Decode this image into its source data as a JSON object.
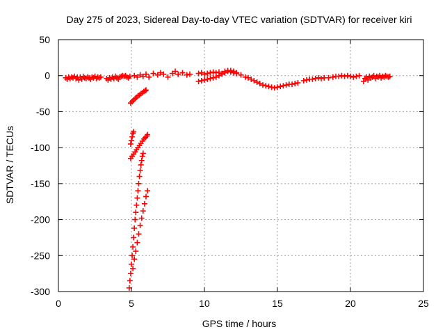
{
  "chart_data": {
    "type": "scatter",
    "title": "Day 275 of 2023, Sidereal Day-to-day VTEC variation (SDTVAR) for receiver kiri",
    "xlabel": "GPS time / hours",
    "ylabel": "SDTVAR / TECUs",
    "xlim": [
      0,
      25
    ],
    "ylim": [
      -300,
      50
    ],
    "xticks": [
      0,
      5,
      10,
      15,
      20,
      25
    ],
    "yticks": [
      -300,
      -250,
      -200,
      -150,
      -100,
      -50,
      0,
      50
    ],
    "grid": true,
    "marker": "plus",
    "color": "#ff0000",
    "series": [
      {
        "points": [
          [
            0.5,
            -3
          ],
          [
            0.6,
            -5
          ],
          [
            0.7,
            -2
          ],
          [
            0.8,
            -4
          ],
          [
            0.9,
            -2
          ],
          [
            1.0,
            -3
          ],
          [
            1.1,
            -1
          ],
          [
            1.2,
            -4
          ],
          [
            1.3,
            -2
          ],
          [
            1.4,
            -6
          ],
          [
            1.5,
            -2
          ],
          [
            1.6,
            -5
          ],
          [
            1.7,
            -1
          ],
          [
            1.8,
            -3
          ],
          [
            1.9,
            -4
          ],
          [
            2.0,
            -2
          ],
          [
            2.1,
            -3
          ],
          [
            2.2,
            -5
          ],
          [
            2.3,
            -2
          ],
          [
            2.4,
            -3
          ],
          [
            2.5,
            -1
          ],
          [
            2.6,
            -4
          ],
          [
            2.7,
            -2
          ],
          [
            2.8,
            -3
          ],
          [
            2.9,
            -2
          ],
          [
            3.3,
            -4
          ],
          [
            3.4,
            -6
          ],
          [
            3.5,
            -3
          ],
          [
            3.6,
            -5
          ],
          [
            3.7,
            -2
          ],
          [
            3.8,
            -4
          ],
          [
            3.9,
            -1
          ],
          [
            4.0,
            -3
          ],
          [
            4.1,
            -5
          ],
          [
            4.2,
            -2
          ],
          [
            4.3,
            -1
          ],
          [
            4.4,
            0
          ],
          [
            4.5,
            -1
          ],
          [
            4.6,
            0
          ],
          [
            4.7,
            -2
          ],
          [
            4.8,
            -3
          ],
          [
            4.9,
            -1
          ],
          [
            5.2,
            0
          ],
          [
            5.4,
            -2
          ],
          [
            5.6,
            1
          ],
          [
            5.8,
            -1
          ],
          [
            6.0,
            2
          ],
          [
            6.2,
            -2
          ],
          [
            6.5,
            3
          ],
          [
            6.8,
            1
          ],
          [
            7.0,
            4
          ],
          [
            7.2,
            2
          ],
          [
            7.5,
            -2
          ],
          [
            7.8,
            3
          ],
          [
            8.0,
            6
          ],
          [
            8.2,
            2
          ],
          [
            8.5,
            4
          ],
          [
            8.8,
            1
          ],
          [
            9.0,
            2
          ],
          [
            9.6,
            3
          ],
          [
            9.8,
            4
          ],
          [
            10.0,
            2
          ],
          [
            10.2,
            3
          ],
          [
            10.4,
            4
          ],
          [
            10.6,
            5
          ],
          [
            10.8,
            4
          ],
          [
            11.0,
            5
          ],
          [
            11.2,
            3
          ],
          [
            11.4,
            6
          ],
          [
            11.6,
            7
          ],
          [
            11.8,
            5
          ],
          [
            12.0,
            4
          ],
          [
            12.2,
            3
          ],
          [
            9.6,
            -8
          ],
          [
            9.8,
            -7
          ],
          [
            10.0,
            -6
          ],
          [
            10.2,
            -5
          ],
          [
            10.4,
            -4
          ],
          [
            10.6,
            -3
          ],
          [
            10.8,
            -2
          ],
          [
            11.0,
            0
          ],
          [
            11.2,
            2
          ],
          [
            11.4,
            4
          ],
          [
            11.6,
            6
          ],
          [
            11.8,
            7
          ],
          [
            12.0,
            6
          ],
          [
            12.2,
            4
          ],
          [
            12.5,
            1
          ],
          [
            12.8,
            -2
          ],
          [
            13.0,
            -3
          ],
          [
            13.2,
            -5
          ],
          [
            13.4,
            -7
          ],
          [
            13.6,
            -9
          ],
          [
            13.8,
            -11
          ],
          [
            14.0,
            -13
          ],
          [
            14.2,
            -14
          ],
          [
            14.4,
            -15
          ],
          [
            14.6,
            -16
          ],
          [
            14.8,
            -17
          ],
          [
            15.0,
            -16
          ],
          [
            15.2,
            -15
          ],
          [
            15.4,
            -14
          ],
          [
            15.6,
            -13
          ],
          [
            15.8,
            -12
          ],
          [
            16.0,
            -12
          ],
          [
            16.2,
            -11
          ],
          [
            16.4,
            -10
          ],
          [
            16.8,
            -7
          ],
          [
            17.0,
            -6
          ],
          [
            17.2,
            -5
          ],
          [
            17.4,
            -5
          ],
          [
            17.6,
            -4
          ],
          [
            17.8,
            -3
          ],
          [
            18.0,
            -4
          ],
          [
            18.2,
            -3
          ],
          [
            18.5,
            -3
          ],
          [
            18.8,
            -2
          ],
          [
            19.0,
            -1
          ],
          [
            19.2,
            -1
          ],
          [
            19.4,
            0
          ],
          [
            19.6,
            -1
          ],
          [
            19.8,
            0
          ],
          [
            20.0,
            -1
          ],
          [
            20.2,
            -2
          ],
          [
            20.4,
            -1
          ],
          [
            20.6,
            0
          ],
          [
            20.9,
            -8
          ],
          [
            21.0,
            -4
          ],
          [
            21.1,
            -2
          ],
          [
            21.2,
            -6
          ],
          [
            21.3,
            -1
          ],
          [
            21.4,
            -3
          ],
          [
            21.5,
            -2
          ],
          [
            21.6,
            0
          ],
          [
            21.7,
            -4
          ],
          [
            21.8,
            -1
          ],
          [
            21.9,
            -2
          ],
          [
            22.0,
            0
          ],
          [
            22.1,
            -3
          ],
          [
            22.2,
            -1
          ],
          [
            22.3,
            -2
          ],
          [
            22.4,
            0
          ],
          [
            22.5,
            -1
          ],
          [
            22.6,
            -2
          ],
          [
            22.7,
            -1
          ],
          [
            4.95,
            -38
          ],
          [
            5.05,
            -36
          ],
          [
            5.15,
            -34
          ],
          [
            5.25,
            -32
          ],
          [
            5.35,
            -30
          ],
          [
            5.45,
            -28
          ],
          [
            5.55,
            -27
          ],
          [
            5.65,
            -25
          ],
          [
            5.75,
            -24
          ],
          [
            5.85,
            -22
          ],
          [
            5.95,
            -21
          ],
          [
            6.0,
            -20
          ],
          [
            4.95,
            -95
          ],
          [
            5.0,
            -90
          ],
          [
            5.05,
            -85
          ],
          [
            5.1,
            -80
          ],
          [
            5.15,
            -78
          ],
          [
            4.95,
            -115
          ],
          [
            5.05,
            -112
          ],
          [
            5.15,
            -109
          ],
          [
            5.25,
            -106
          ],
          [
            5.35,
            -103
          ],
          [
            5.45,
            -100
          ],
          [
            5.55,
            -97
          ],
          [
            5.65,
            -94
          ],
          [
            5.75,
            -91
          ],
          [
            5.85,
            -88
          ],
          [
            5.95,
            -86
          ],
          [
            6.05,
            -84
          ],
          [
            6.1,
            -82
          ],
          [
            4.85,
            -295
          ],
          [
            4.9,
            -285
          ],
          [
            4.95,
            -275
          ],
          [
            5.0,
            -262
          ],
          [
            5.05,
            -250
          ],
          [
            5.1,
            -238
          ],
          [
            5.15,
            -225
          ],
          [
            5.2,
            -212
          ],
          [
            5.25,
            -200
          ],
          [
            5.3,
            -190
          ],
          [
            5.35,
            -180
          ],
          [
            5.4,
            -170
          ],
          [
            5.45,
            -160
          ],
          [
            5.5,
            -150
          ],
          [
            5.55,
            -140
          ],
          [
            5.6,
            -132
          ],
          [
            5.65,
            -124
          ],
          [
            5.7,
            -118
          ],
          [
            5.75,
            -112
          ],
          [
            5.8,
            -108
          ],
          [
            5.1,
            -268
          ],
          [
            5.2,
            -255
          ],
          [
            5.3,
            -244
          ],
          [
            5.4,
            -232
          ],
          [
            5.5,
            -220
          ],
          [
            5.6,
            -208
          ],
          [
            5.7,
            -198
          ],
          [
            5.8,
            -188
          ],
          [
            5.9,
            -178
          ],
          [
            6.0,
            -168
          ],
          [
            6.1,
            -160
          ]
        ]
      }
    ]
  }
}
